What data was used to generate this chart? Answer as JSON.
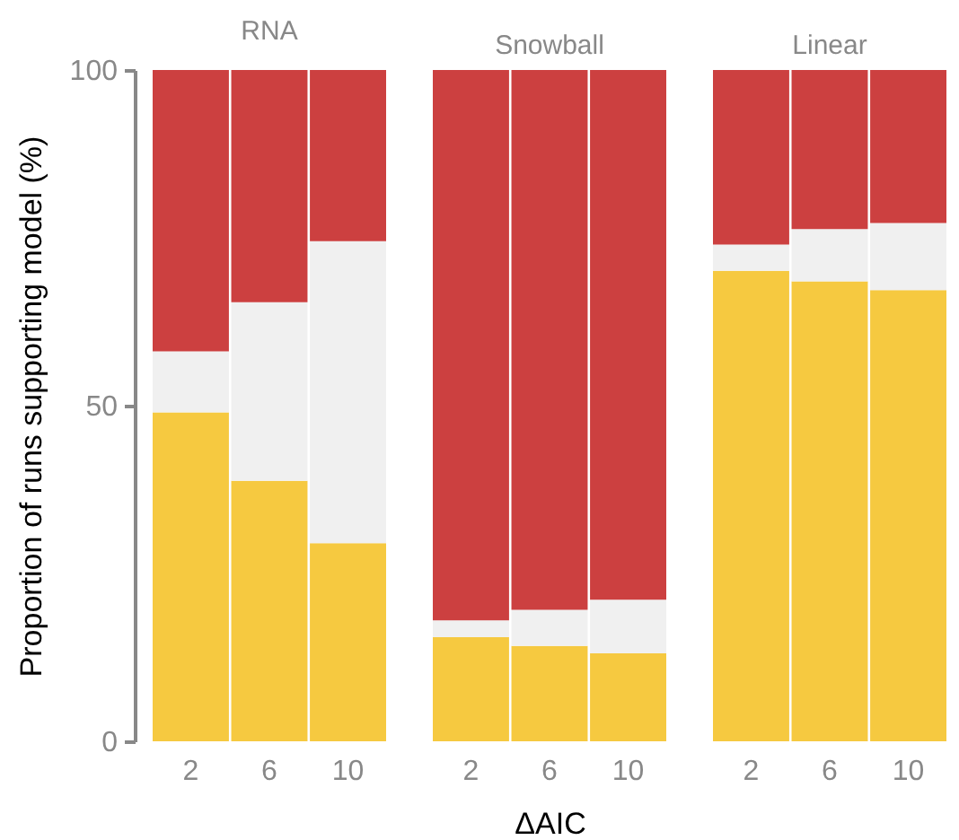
{
  "chart_data": [
    {
      "type": "bar",
      "title": "RNA",
      "ylabel": "Proportion of runs supporting model (%)",
      "categories": [
        "2",
        "6",
        "10"
      ],
      "stacked": true,
      "ylim": [
        0,
        100
      ],
      "yticks": [
        0,
        50,
        100
      ],
      "grid": false,
      "legend": false,
      "series": [
        {
          "color": "#f6c940",
          "values": [
            49.0,
            38.8,
            29.5
          ]
        },
        {
          "color": "#f0f0f0",
          "values": [
            9.1,
            26.6,
            45.0
          ]
        },
        {
          "color": "#cc4040",
          "values": [
            41.9,
            34.6,
            25.5
          ]
        }
      ]
    },
    {
      "type": "bar",
      "title": "Snowball",
      "xlabel": "ΔAIC",
      "categories": [
        "2",
        "6",
        "10"
      ],
      "stacked": true,
      "ylim": [
        0,
        100
      ],
      "tick_labels": "x",
      "grid": false,
      "legend": false,
      "series": [
        {
          "color": "#f6c940",
          "values": [
            15.5,
            14.2,
            13.1
          ]
        },
        {
          "color": "#f0f0f0",
          "values": [
            2.5,
            5.4,
            8.0
          ]
        },
        {
          "color": "#cc4040",
          "values": [
            82.0,
            80.4,
            78.9
          ]
        }
      ]
    },
    {
      "type": "bar",
      "title": "Linear",
      "categories": [
        "2",
        "6",
        "10"
      ],
      "stacked": true,
      "ylim": [
        0,
        100
      ],
      "tick_labels": "x",
      "grid": false,
      "legend": false,
      "series": [
        {
          "color": "#f6c940",
          "values": [
            70.1,
            68.5,
            67.2
          ]
        },
        {
          "color": "#f0f0f0",
          "values": [
            3.9,
            7.8,
            10.0
          ]
        },
        {
          "color": "#cc4040",
          "values": [
            26.0,
            23.7,
            22.8
          ]
        }
      ]
    }
  ]
}
